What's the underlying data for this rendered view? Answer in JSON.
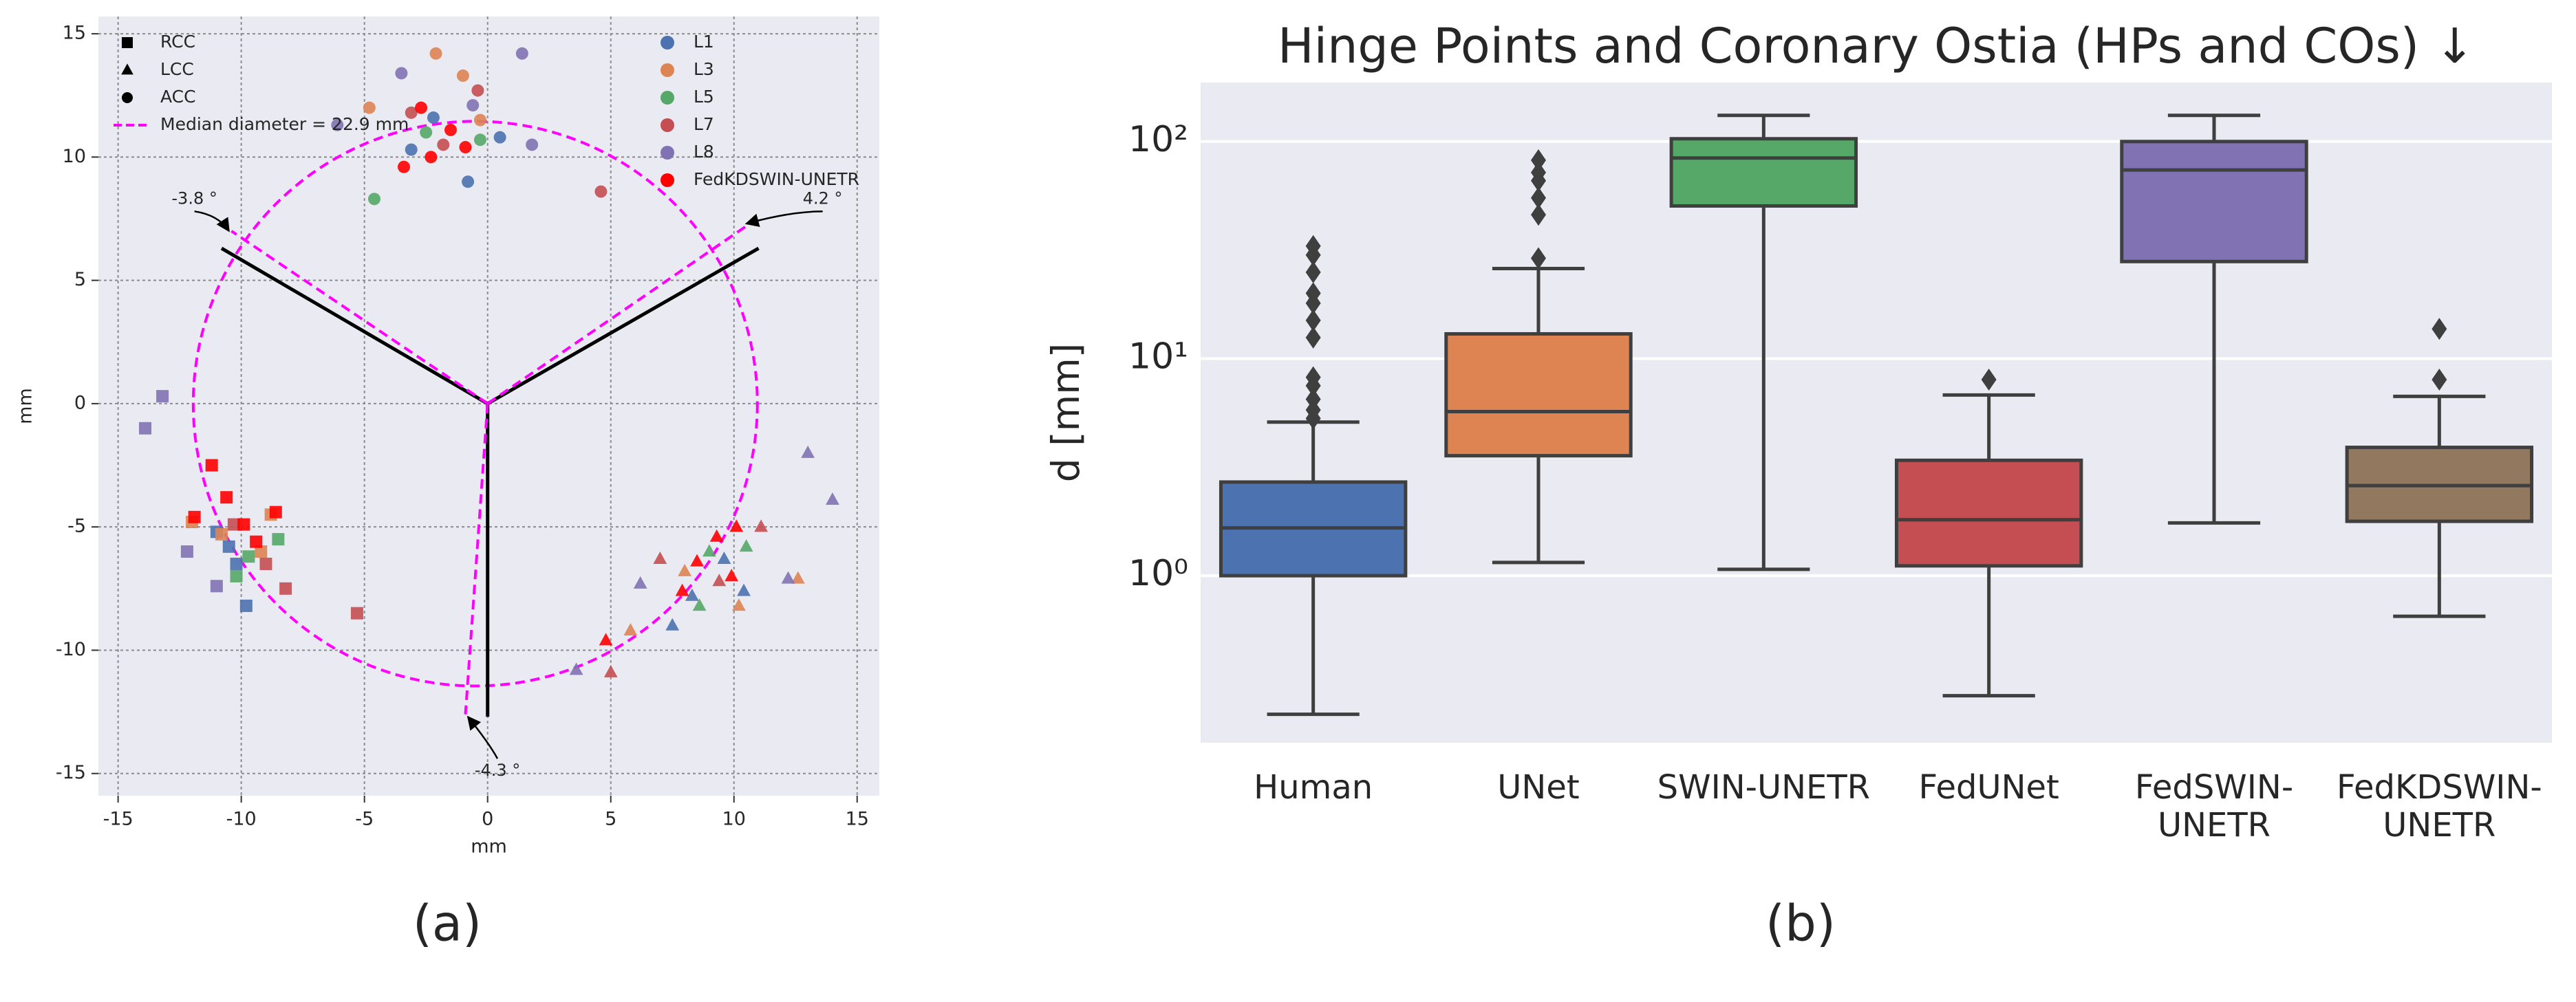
{
  "chart_data": [
    {
      "type": "scatter",
      "caption": "(a)",
      "xlabel": "mm",
      "ylabel": "mm",
      "xlim": [
        -15.8,
        15.9
      ],
      "ylim": [
        -15.9,
        15.7
      ],
      "xticks": [
        -15,
        -10,
        -5,
        0,
        5,
        10,
        15
      ],
      "yticks": [
        -15,
        -10,
        -5,
        0,
        5,
        10,
        15
      ],
      "grid": true,
      "cusp_markers": [
        {
          "label": "RCC",
          "marker": "square"
        },
        {
          "label": "LCC",
          "marker": "triangle"
        },
        {
          "label": "ACC",
          "marker": "circle"
        }
      ],
      "marker_legend": "upper left",
      "legend": "upper right",
      "median_circle": {
        "label": "Median diameter = 22.9 mm",
        "diameter": 22.9,
        "center": [
          -0.5,
          0
        ],
        "color": "#ff00ff"
      },
      "series": [
        {
          "name": "L1",
          "color": "#4c72b0",
          "groups": [
            {
              "x": [
                -10.5,
                -9.8,
                -10.2,
                -11.0
              ],
              "y": [
                -5.8,
                -8.2,
                -6.5,
                -5.2
              ]
            },
            {
              "x": [
                7.5,
                8.3,
                9.6,
                10.4
              ],
              "y": [
                -9.0,
                -7.8,
                -6.3,
                -7.6
              ]
            },
            {
              "x": [
                -2.2,
                -0.8,
                0.5,
                -3.1
              ],
              "y": [
                11.6,
                9.0,
                10.8,
                10.3
              ]
            }
          ]
        },
        {
          "name": "L3",
          "color": "#dd8452",
          "groups": [
            {
              "x": [
                -12.0,
                -10.8,
                -9.2,
                -8.8
              ],
              "y": [
                -4.8,
                -5.3,
                -6.0,
                -4.5
              ]
            },
            {
              "x": [
                8.0,
                10.2,
                12.6,
                5.8
              ],
              "y": [
                -6.8,
                -8.2,
                -7.1,
                -9.2
              ]
            },
            {
              "x": [
                -2.1,
                -1.0,
                -4.8,
                -0.3
              ],
              "y": [
                14.2,
                13.3,
                12.0,
                11.5
              ]
            }
          ]
        },
        {
          "name": "L5",
          "color": "#55a868",
          "groups": [
            {
              "x": [
                -10.2,
                -8.5,
                -9.7
              ],
              "y": [
                -7.0,
                -5.5,
                -6.2
              ]
            },
            {
              "x": [
                9.0,
                10.5,
                8.6
              ],
              "y": [
                -6.0,
                -5.8,
                -8.2
              ]
            },
            {
              "x": [
                -4.6,
                -0.3,
                -2.5
              ],
              "y": [
                8.3,
                10.7,
                11.0
              ]
            }
          ]
        },
        {
          "name": "L7",
          "color": "#c44e52",
          "groups": [
            {
              "x": [
                -9.0,
                -5.3,
                -10.3,
                -8.2
              ],
              "y": [
                -6.5,
                -8.5,
                -4.9,
                -7.5
              ]
            },
            {
              "x": [
                5.0,
                9.4,
                11.1,
                7.0
              ],
              "y": [
                -10.9,
                -7.2,
                -5.0,
                -6.3
              ]
            },
            {
              "x": [
                -1.8,
                4.6,
                -3.1,
                -0.4
              ],
              "y": [
                10.5,
                8.6,
                11.8,
                12.7
              ]
            }
          ]
        },
        {
          "name": "L8",
          "color": "#8172b3",
          "groups": [
            {
              "x": [
                -13.2,
                -13.9,
                -12.2,
                -11.0
              ],
              "y": [
                0.3,
                -1.0,
                -6.0,
                -7.4
              ]
            },
            {
              "x": [
                13.0,
                14.0,
                12.2,
                3.6,
                6.2
              ],
              "y": [
                -2.0,
                -3.9,
                -7.1,
                -10.8,
                -7.3
              ]
            },
            {
              "x": [
                -6.1,
                -3.5,
                1.4,
                -0.6,
                1.8
              ],
              "y": [
                11.3,
                13.4,
                14.2,
                12.1,
                10.5
              ]
            }
          ]
        },
        {
          "name": "FedKDSWIN-UNETR",
          "color": "#ff0000",
          "groups": [
            {
              "x": [
                -11.2,
                -10.6,
                -9.9,
                -9.4,
                -8.6,
                -11.9
              ],
              "y": [
                -2.5,
                -3.8,
                -4.9,
                -5.6,
                -4.4,
                -4.6
              ]
            },
            {
              "x": [
                10.1,
                9.3,
                8.5,
                9.9,
                7.9,
                4.8
              ],
              "y": [
                -5.0,
                -5.4,
                -6.4,
                -7.0,
                -7.6,
                -9.6
              ]
            },
            {
              "x": [
                -2.3,
                -1.5,
                -3.4,
                -0.9,
                -2.7
              ],
              "y": [
                10.0,
                11.1,
                9.6,
                10.4,
                12.0
              ]
            }
          ]
        }
      ],
      "lines": [
        {
          "x": [
            0,
            -10.8
          ],
          "y": [
            0,
            6.3
          ],
          "color": "#000000",
          "dashed": false
        },
        {
          "x": [
            0,
            11.0
          ],
          "y": [
            0,
            6.3
          ],
          "color": "#000000",
          "dashed": false
        },
        {
          "x": [
            0,
            0
          ],
          "y": [
            0,
            -12.7
          ],
          "color": "#000000",
          "dashed": false
        },
        {
          "x": [
            0,
            -10.4
          ],
          "y": [
            0,
            7.0
          ],
          "color": "#ff00ff",
          "dashed": true
        },
        {
          "x": [
            0,
            10.5
          ],
          "y": [
            0,
            7.2
          ],
          "color": "#ff00ff",
          "dashed": true
        },
        {
          "x": [
            0,
            -0.9
          ],
          "y": [
            0,
            -12.6
          ],
          "color": "#ff00ff",
          "dashed": true
        }
      ],
      "annotations": [
        {
          "text": "-3.8 °",
          "x": -11.9,
          "y": 8.3,
          "arrow_x": -10.5,
          "arrow_y": 7.0
        },
        {
          "text": "4.2 °",
          "x": 13.6,
          "y": 8.3,
          "arrow_x": 10.5,
          "arrow_y": 7.3
        },
        {
          "text": "-4.3 °",
          "x": 0.4,
          "y": -14.9,
          "arrow_x": -0.8,
          "arrow_y": -12.7
        }
      ]
    },
    {
      "type": "box",
      "caption": "(b)",
      "title": "Hinge Points and Coronary Ostia (HPs and COs)  ↓",
      "ylabel": "d [mm]",
      "log_y": true,
      "ylim": [
        0.17,
        187
      ],
      "grid": true,
      "yticks": [
        {
          "value": 1,
          "label": "10⁰"
        },
        {
          "value": 10,
          "label": "10¹"
        },
        {
          "value": 100,
          "label": "10²"
        }
      ],
      "categories": [
        "Human",
        "UNet",
        "SWIN-UNETR",
        "FedUNet",
        "FedSWIN-\nUNETR",
        "FedKDSWIN-\nUNETR"
      ],
      "colors": [
        "#4c72b0",
        "#dd8452",
        "#55a868",
        "#c44e52",
        "#8172b3",
        "#937860"
      ],
      "boxes": [
        {
          "whislo": 0.23,
          "q1": 1.0,
          "med": 1.66,
          "q3": 2.7,
          "whishi": 5.1,
          "fliers": [
            5.3,
            5.8,
            6.5,
            7.5,
            8.2,
            12.5,
            15,
            18,
            20,
            25,
            30,
            33
          ]
        },
        {
          "whislo": 1.15,
          "q1": 3.57,
          "med": 5.7,
          "q3": 13,
          "whishi": 26,
          "fliers": [
            29,
            46,
            55,
            66,
            72,
            82
          ]
        },
        {
          "whislo": 1.07,
          "q1": 50.5,
          "med": 84,
          "q3": 103,
          "whishi": 132,
          "fliers": []
        },
        {
          "whislo": 0.28,
          "q1": 1.11,
          "med": 1.81,
          "q3": 3.4,
          "whishi": 6.8,
          "fliers": [
            8.0
          ]
        },
        {
          "whislo": 1.75,
          "q1": 28,
          "med": 74,
          "q3": 100,
          "whishi": 132,
          "fliers": []
        },
        {
          "whislo": 0.65,
          "q1": 1.78,
          "med": 2.6,
          "q3": 3.9,
          "whishi": 6.7,
          "fliers": [
            8.0,
            13.7
          ]
        }
      ]
    }
  ]
}
